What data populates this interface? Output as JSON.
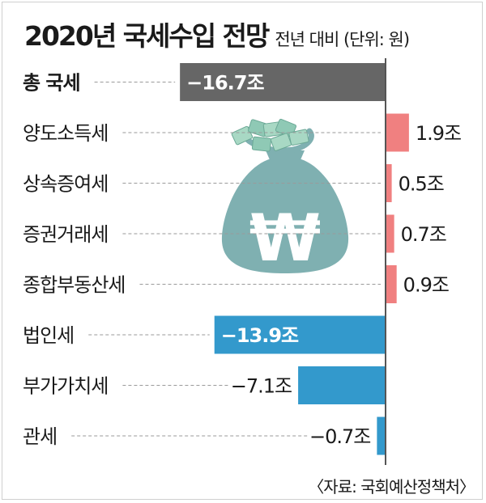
{
  "title": "2020년 국세수입 전망",
  "subtitle": "전년 대비 (단위: 원)",
  "source": "〈자료: 국회예산정책처〉",
  "colors": {
    "total": "#666666",
    "positive": "#f08080",
    "negative": "#3399cc",
    "axis": "#555555",
    "money_bag": "#7fb0b1"
  },
  "chart_data": {
    "type": "bar",
    "orientation": "horizontal",
    "unit": "조",
    "categories": [
      "총 국세",
      "양도소득세",
      "상속증여세",
      "증권거래세",
      "종합부동산세",
      "법인세",
      "부가가치세",
      "관세"
    ],
    "values": [
      -16.7,
      1.9,
      0.5,
      0.7,
      0.9,
      -13.9,
      -7.1,
      -0.7
    ],
    "labels": [
      "−16.7조",
      "1.9조",
      "0.5조",
      "0.7조",
      "0.9조",
      "−13.9조",
      "−7.1조",
      "−0.7조"
    ],
    "xlim": [
      -16.7,
      1.9
    ],
    "title": "2020년 국세수입 전망",
    "subtitle": "전년 대비 (단위: 원)",
    "xlabel": "",
    "ylabel": ""
  }
}
